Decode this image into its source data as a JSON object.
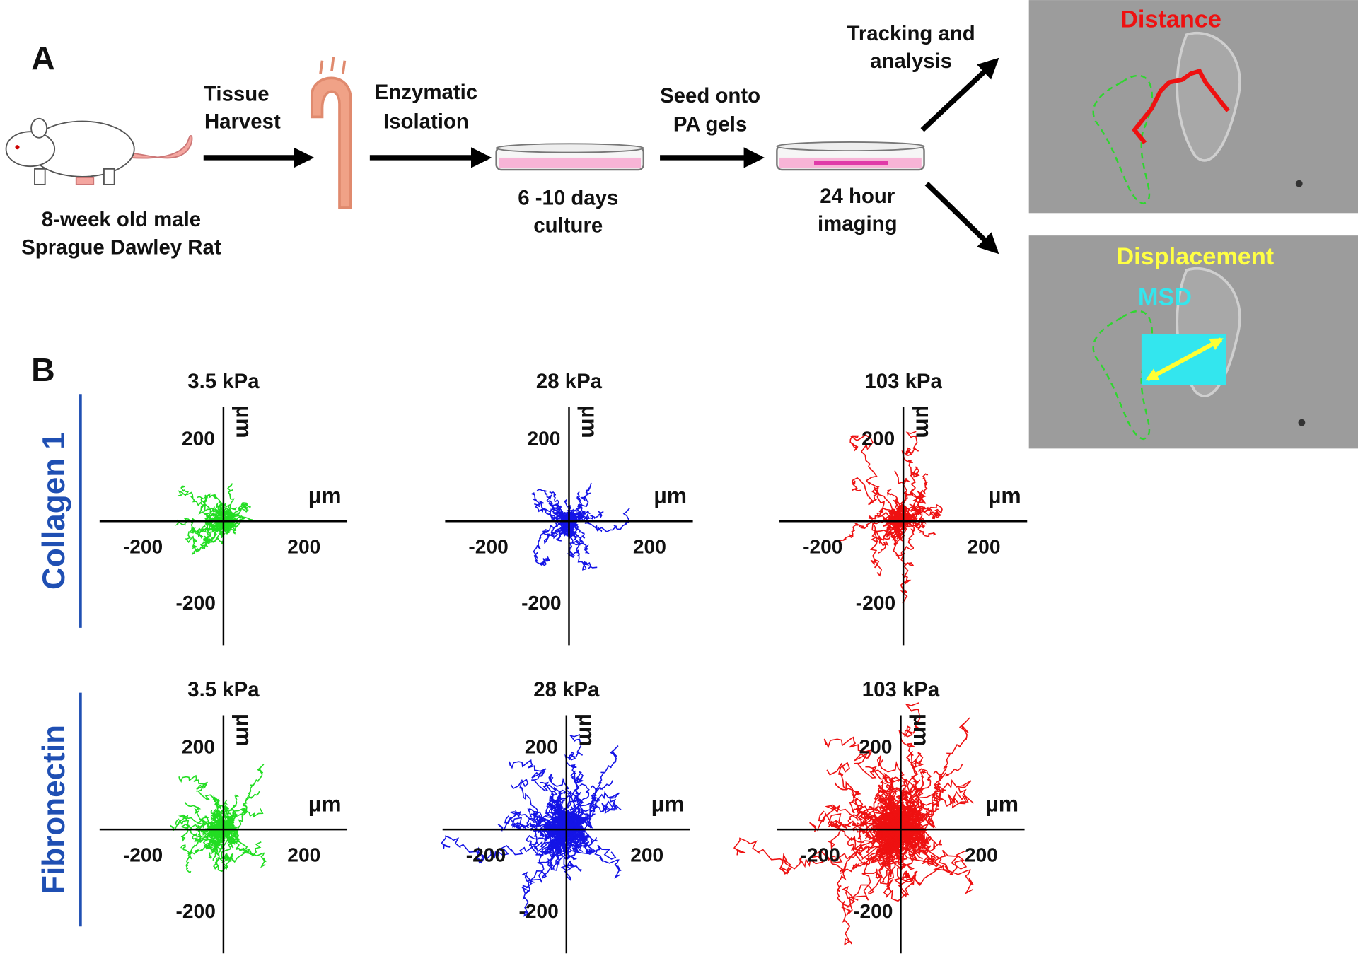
{
  "panel_a": {
    "label": "A",
    "rat_label": [
      "8-week old male",
      "Sprague Dawley Rat"
    ],
    "step_1": [
      "Tissue",
      "Harvest"
    ],
    "step_2": [
      "Enzymatic",
      "Isolation"
    ],
    "dish_1": [
      "6 -10 days",
      "culture"
    ],
    "step_3": [
      "Seed onto",
      "PA gels"
    ],
    "dish_2": [
      "24 hour",
      "imaging"
    ],
    "step_4": [
      "Tracking and",
      "analysis"
    ],
    "image_1": {
      "label": "Distance"
    },
    "image_2": {
      "label": "Displacement",
      "sublabel": "MSD"
    }
  },
  "panel_b": {
    "label": "B",
    "rows": [
      "Collagen 1",
      "Fibronectin"
    ],
    "columns": [
      "3.5 kPa",
      "28 kPa",
      "103 kPa"
    ],
    "axis_unit": "µm",
    "tick_low": "-200",
    "tick_high": "200"
  }
}
